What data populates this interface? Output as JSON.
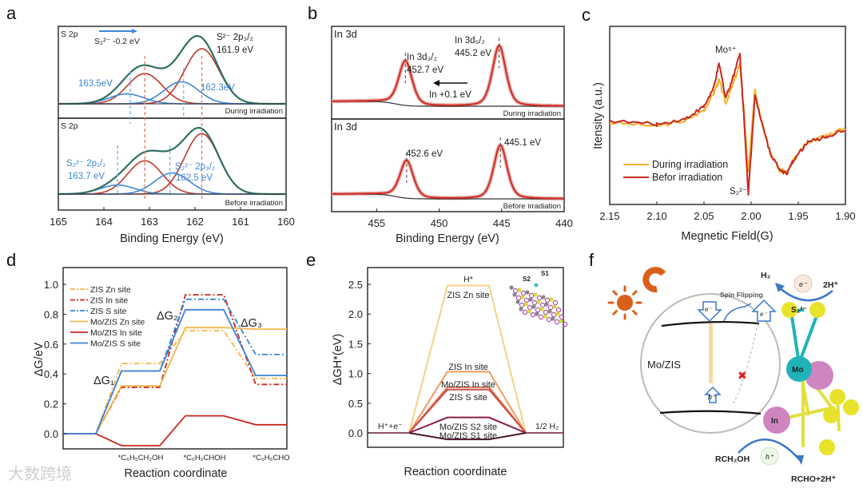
{
  "panels": {
    "a": "a",
    "b": "b",
    "c": "c",
    "d": "d",
    "e": "e",
    "f": "f"
  },
  "watermark": "大数跨境",
  "chart_data": [
    {
      "id": "a",
      "type": "line",
      "title": "S 2p XPS",
      "xlabel": "Binding Energy (eV)",
      "xlim": [
        165,
        160
      ],
      "xticks": [
        "165",
        "164",
        "163",
        "162",
        "161",
        "160"
      ],
      "subplots": [
        {
          "name": "top",
          "label": "S 2p",
          "condition": "During irradiation",
          "peaks": [
            {
              "series": "S2- 2p1/2",
              "color": "#c0392b",
              "center": 163.1,
              "amp": 0.55
            },
            {
              "series": "S2- 2p3/2",
              "color": "#c0392b",
              "center": 161.85,
              "amp": 1.0
            },
            {
              "series": "S2^2- 2p1/2",
              "color": "#3f86d6",
              "center": 163.5,
              "amp": 0.18
            },
            {
              "series": "S2^2- 2p3/2",
              "color": "#3f86d6",
              "center": 162.3,
              "amp": 0.4
            }
          ],
          "annotations": {
            "shift": "S₂²⁻ -0.2 eV",
            "s2_name": "S²⁻ 2p₃/₂",
            "s2_val": "161.9 eV",
            "blue1": "163.5eV",
            "blue2": "162.3eV"
          }
        },
        {
          "name": "bottom",
          "label": "S 2p",
          "condition": "Before irradiation",
          "peaks": [
            {
              "series": "S2- 2p1/2",
              "color": "#c0392b",
              "center": 163.1,
              "amp": 0.55
            },
            {
              "series": "S2- 2p3/2",
              "color": "#c0392b",
              "center": 161.85,
              "amp": 1.0
            },
            {
              "series": "S2^2- 2p1/2",
              "color": "#3f86d6",
              "center": 163.7,
              "amp": 0.15
            },
            {
              "series": "S2^2- 2p3/2",
              "color": "#3f86d6",
              "center": 162.5,
              "amp": 0.35
            }
          ],
          "annotations": {
            "b1_name": "S₂²⁻ 2p₁/₂",
            "b1_val": "163.7 eV",
            "b2_name": "S₂²⁻ 2p₃/₂",
            "b2_val": "162.5 eV"
          }
        }
      ]
    },
    {
      "id": "b",
      "type": "line",
      "title": "In 3d XPS",
      "xlabel": "Binding Energy (eV)",
      "xlim": [
        458.6,
        440
      ],
      "xticks": [
        "455",
        "450",
        "445",
        "440"
      ],
      "subplots": [
        {
          "name": "top",
          "label": "In 3d",
          "condition": "During irradiation",
          "peaks": [
            {
              "center": 452.7,
              "amp": 0.65
            },
            {
              "center": 445.2,
              "amp": 0.88
            }
          ],
          "annotations": {
            "p1_name": "In 3d₃/₂",
            "p1_val": "452.7 eV",
            "p2_name": "In 3d₅/₂",
            "p2_val": "445.2 eV",
            "shift": "In +0.1 eV"
          }
        },
        {
          "name": "bottom",
          "label": "In 3d",
          "condition": "Before irradiation",
          "peaks": [
            {
              "center": 452.6,
              "amp": 0.55
            },
            {
              "center": 445.1,
              "amp": 0.78
            }
          ],
          "annotations": {
            "p1_val": "452.6 eV",
            "p2_val": "445.1 eV"
          }
        }
      ]
    },
    {
      "id": "c",
      "type": "line",
      "xlabel": "Megnetic Field(G)",
      "ylabel": "Itensity (a.u.)",
      "xlim": [
        2.15,
        1.9
      ],
      "xticks": [
        "2.15",
        "2.10",
        "2.05",
        "2.00",
        "1.95",
        "1.90"
      ],
      "annotations": {
        "mo": "Mo⁵⁺",
        "s2": "S₂²⁻"
      },
      "legend_position": "bottom-left",
      "series": [
        {
          "name": "During irradiation",
          "color": "#f2b12c",
          "points": [
            [
              2.15,
              0.46
            ],
            [
              2.1,
              0.44
            ],
            [
              2.07,
              0.47
            ],
            [
              2.05,
              0.53
            ],
            [
              2.04,
              0.62
            ],
            [
              2.034,
              0.7
            ],
            [
              2.027,
              0.57
            ],
            [
              2.02,
              0.66
            ],
            [
              2.012,
              0.79
            ],
            [
              2.008,
              0.55
            ],
            [
              2.003,
              0.18
            ],
            [
              1.996,
              0.64
            ],
            [
              1.99,
              0.5
            ],
            [
              1.98,
              0.3
            ],
            [
              1.97,
              0.19
            ],
            [
              1.962,
              0.18
            ],
            [
              1.955,
              0.25
            ],
            [
              1.94,
              0.35
            ],
            [
              1.92,
              0.39
            ],
            [
              1.9,
              0.43
            ]
          ]
        },
        {
          "name": "Befor irradiation",
          "color": "#c8281e",
          "points": [
            [
              2.15,
              0.47
            ],
            [
              2.1,
              0.45
            ],
            [
              2.07,
              0.48
            ],
            [
              2.05,
              0.55
            ],
            [
              2.04,
              0.65
            ],
            [
              2.034,
              0.79
            ],
            [
              2.027,
              0.6
            ],
            [
              2.02,
              0.7
            ],
            [
              2.012,
              0.85
            ],
            [
              2.008,
              0.52
            ],
            [
              2.003,
              0.06
            ],
            [
              1.996,
              0.61
            ],
            [
              1.99,
              0.49
            ],
            [
              1.98,
              0.29
            ],
            [
              1.97,
              0.2
            ],
            [
              1.962,
              0.17
            ],
            [
              1.955,
              0.25
            ],
            [
              1.94,
              0.35
            ],
            [
              1.92,
              0.38
            ],
            [
              1.9,
              0.42
            ]
          ]
        }
      ]
    },
    {
      "id": "d",
      "type": "line",
      "xlabel": "Reaction coordinate",
      "ylabel": "ΔG/eV",
      "ylim": [
        -0.1,
        1.12
      ],
      "yticks": [
        "0.0",
        "0.2",
        "0.4",
        "0.6",
        "0.8",
        "1.0"
      ],
      "categories": [
        "",
        "*C₆H₅CH₂OH",
        "*C₆H₅CHOH",
        "*C₆H₅CHO"
      ],
      "annotations": {
        "g1": "ΔG₁",
        "g2": "ΔG₂",
        "g3": "ΔG₃"
      },
      "legend_position": "top-left",
      "series": [
        {
          "name": "ZIS Zn site",
          "color": "#f2b74a",
          "dash": true,
          "values": [
            0,
            0.47,
            0.69,
            0.37
          ]
        },
        {
          "name": "ZIS In site",
          "color": "#c8281e",
          "dash": true,
          "values": [
            0,
            0.31,
            0.93,
            0.33
          ]
        },
        {
          "name": "ZIS S site",
          "color": "#3d84d6",
          "dash": true,
          "values": [
            0,
            0.42,
            0.9,
            0.53
          ]
        },
        {
          "name": "Mo/ZIS Zn site",
          "color": "#f2b74a",
          "dash": false,
          "values": [
            0,
            0.32,
            0.71,
            0.7
          ]
        },
        {
          "name": "Mo/ZIS In site",
          "color": "#c8281e",
          "dash": false,
          "values": [
            0,
            -0.08,
            0.12,
            0.06
          ]
        },
        {
          "name": "Mo/ZIS S site",
          "color": "#3d84d6",
          "dash": false,
          "values": [
            0,
            0.42,
            0.83,
            0.39
          ]
        }
      ]
    },
    {
      "id": "e",
      "type": "line",
      "xlabel": "Reaction coordinate",
      "ylabel": "ΔGH*(eV)",
      "ylim": [
        -0.23,
        2.75
      ],
      "yticks": [
        "0.0",
        "0.5",
        "1.0",
        "1.5",
        "2.0",
        "2.5"
      ],
      "end_labels": {
        "start": "H⁺+e⁻",
        "end": "1/2 H₂",
        "top": "H*"
      },
      "inset_labels": {
        "s1": "S1",
        "s2": "S2"
      },
      "series": [
        {
          "name": "ZIS Zn site",
          "color": "#f6cf86",
          "value": 2.48
        },
        {
          "name": "ZIS In site",
          "color": "#f09a5a",
          "value": 1.03
        },
        {
          "name": "Mo/ZIS In site",
          "color": "#e0734f",
          "value": 0.77
        },
        {
          "name": "ZIS S site",
          "color": "#cc4c46",
          "value": 0.73
        },
        {
          "name": "Mo/ZIS S2 site",
          "color": "#8c1f4a",
          "value": 0.26
        },
        {
          "name": "Mo/ZIS S1 site",
          "color": "#4a1530",
          "value": -0.11
        }
      ]
    }
  ],
  "diagram_f": {
    "spin_flipping": "Spin Flipping",
    "electron": "e⁻",
    "hole": "h⁺",
    "material": "Mo/ZIS",
    "h2": "H₂",
    "two_h": "2H⁺",
    "s2": "S₂²⁻",
    "mo": "Mo",
    "in": "In",
    "alcohol": "RCH₂OH",
    "product": "RCHO+2H⁺",
    "blocked": "✖",
    "colors": {
      "sun": "#d9601a",
      "magnet": "#d9601a",
      "mo": "#1fb3b8",
      "in": "#cf86c0",
      "s": "#e8e22a",
      "arrow": "#3a78c8"
    }
  }
}
